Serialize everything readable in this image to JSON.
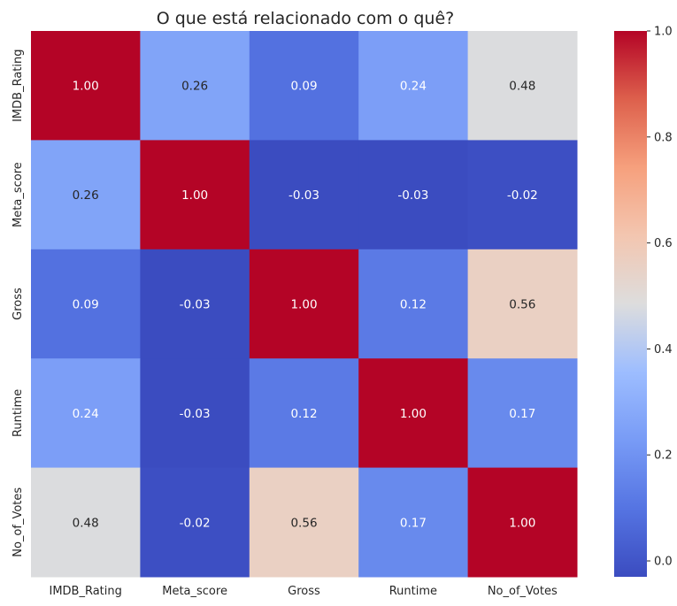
{
  "chart_data": {
    "type": "heatmap",
    "title": "O que está relacionado com o quê?",
    "x_labels": [
      "IMDB_Rating",
      "Meta_score",
      "Gross",
      "Runtime",
      "No_of_Votes"
    ],
    "y_labels": [
      "IMDB_Rating",
      "Meta_score",
      "Gross",
      "Runtime",
      "No_of_Votes"
    ],
    "values": [
      [
        1.0,
        0.26,
        0.09,
        0.24,
        0.48
      ],
      [
        0.26,
        1.0,
        -0.03,
        -0.03,
        -0.02
      ],
      [
        0.09,
        -0.03,
        1.0,
        0.12,
        0.56
      ],
      [
        0.24,
        -0.03,
        0.12,
        1.0,
        0.17
      ],
      [
        0.48,
        -0.02,
        0.56,
        0.17,
        1.0
      ]
    ],
    "value_format": "2 decimals",
    "colormap": "coolwarm",
    "vmin": -0.03,
    "vmax": 1.0,
    "colorbar_ticks": [
      "0.0",
      "0.2",
      "0.4",
      "0.6",
      "0.8",
      "1.0"
    ],
    "colorbar_tick_values": [
      0.0,
      0.2,
      0.4,
      0.6,
      0.8,
      1.0
    ],
    "grid": false
  }
}
